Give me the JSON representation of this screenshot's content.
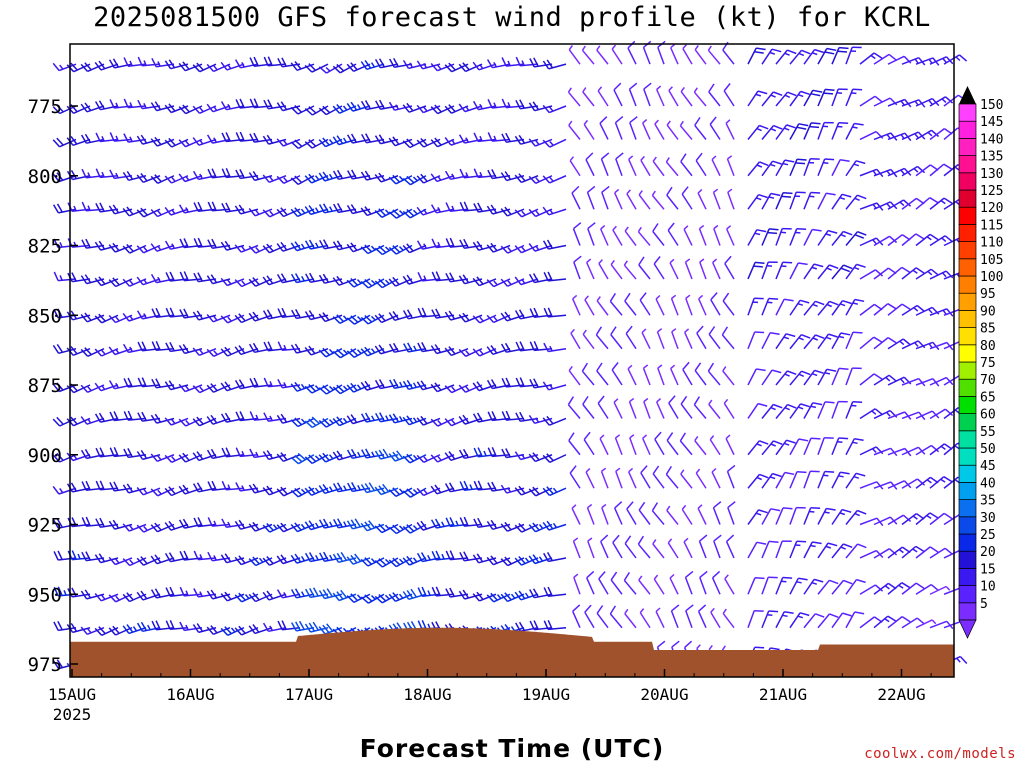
{
  "chart_data": {
    "type": "wind_barb_profile",
    "title": "2025081500 GFS forecast wind profile (kt) for KCRL",
    "xlabel": "Forecast Time (UTC)",
    "ylabel": "",
    "credit": "coolwx.com/models",
    "x_ticks": [
      "15AUG",
      "16AUG",
      "17AUG",
      "18AUG",
      "19AUG",
      "20AUG",
      "21AUG",
      "22AUG"
    ],
    "x_first_tick_year": "2025",
    "x_range_days": [
      0,
      7.6
    ],
    "y_ticks": [
      775,
      800,
      825,
      850,
      875,
      900,
      925,
      950,
      975
    ],
    "y_range_hpa": [
      980,
      755
    ],
    "pressure_levels": [
      760,
      775,
      787,
      800,
      812,
      825,
      837,
      850,
      862,
      875,
      887,
      900,
      912,
      925,
      937,
      950,
      962,
      975
    ],
    "speed_scale_kt": [
      5,
      10,
      15,
      20,
      25,
      30,
      35,
      40,
      45,
      50,
      55,
      60,
      65,
      70,
      75,
      80,
      85,
      90,
      95,
      100,
      105,
      110,
      115,
      120,
      125,
      130,
      135,
      140,
      145,
      150
    ],
    "speed_colors": [
      "#7b2cff",
      "#5a22ff",
      "#3a18f0",
      "#2212d6",
      "#0a28e8",
      "#0a4ae8",
      "#0a70f0",
      "#00a0f0",
      "#00c8e8",
      "#00e0c0",
      "#00e0a0",
      "#00d050",
      "#00e000",
      "#50e000",
      "#a0f000",
      "#ffff00",
      "#ffe000",
      "#ffc000",
      "#ffa000",
      "#ff8000",
      "#ff6000",
      "#ff4000",
      "#ff2000",
      "#ff0000",
      "#e00030",
      "#f00060",
      "#ff1090",
      "#ff20c0",
      "#ff20e0",
      "#ff40ff"
    ],
    "terrain_color": "#a0522d",
    "periods": [
      {
        "days": [
          0,
          1.95
        ],
        "dir": 255,
        "speed_low": 22,
        "speed_high": 20
      },
      {
        "days": [
          1.95,
          3.0
        ],
        "dir": 250,
        "speed_low": 30,
        "speed_high": 22
      },
      {
        "days": [
          3.0,
          4.2
        ],
        "dir": 255,
        "speed_low": 24,
        "speed_high": 18
      },
      {
        "days": [
          4.2,
          5.6
        ],
        "dir": 330,
        "speed_low": 10,
        "speed_high": 8
      },
      {
        "days": [
          5.6,
          6.6
        ],
        "dir": 30,
        "speed_low": 14,
        "speed_high": 18
      },
      {
        "days": [
          6.6,
          7.6
        ],
        "dir": 60,
        "speed_low": 12,
        "speed_high": 16
      }
    ]
  }
}
